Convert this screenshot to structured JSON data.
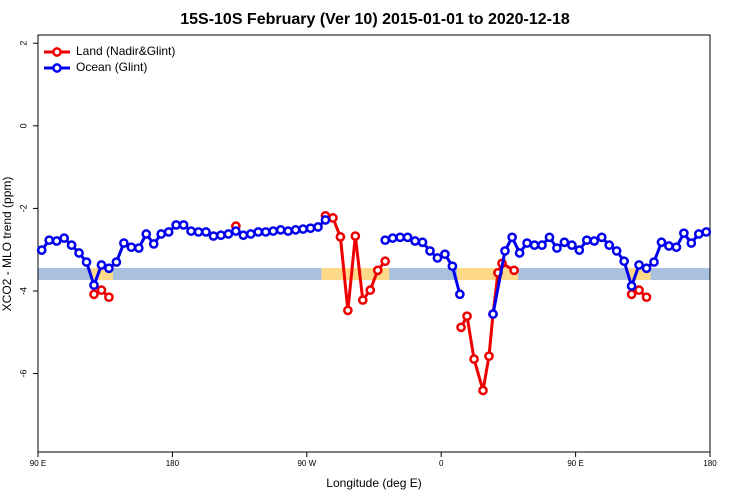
{
  "chart_data": {
    "type": "line",
    "title": "15S-10S February (Ver 10)   2015-01-01 to 2020-12-18",
    "x_label": "Longitude (deg E)",
    "y_label": "XCO2 - MLO trend (ppm)",
    "xlim": [
      90,
      540
    ],
    "xticks": [
      {
        "value": 90,
        "label": "90 E"
      },
      {
        "value": 180,
        "label": "180"
      },
      {
        "value": 270,
        "label": "90 W"
      },
      {
        "value": 360,
        "label": "0"
      },
      {
        "value": 450,
        "label": "90 E"
      },
      {
        "value": 540,
        "label": "180"
      }
    ],
    "ylim": [
      -7.9,
      2.2
    ],
    "yticks": [
      2,
      0,
      -2,
      -4,
      -6
    ],
    "legend": "top-left",
    "series": [
      {
        "name": "Land (Nadir&Glint)",
        "color": "#ee0000",
        "x": [
          127.5,
          132.5,
          137.5,
          142.5,
          222.5,
          227.5,
          282.5,
          287.5,
          292.5,
          297.5,
          302.5,
          307.5,
          312.5,
          317.5,
          322.5,
          327.5,
          373.3,
          377.3,
          382.0,
          388.0,
          392.0,
          394.7,
          398.0,
          400.7,
          408.8,
          412.5,
          487.5,
          492.5,
          497.5
        ],
        "values": [
          -4.08,
          -3.98,
          -4.15,
          null,
          -2.43,
          null,
          -2.18,
          -2.23,
          -2.69,
          -4.47,
          -2.67,
          -4.22,
          -3.98,
          -3.5,
          -3.28,
          null,
          -4.88,
          -4.61,
          -5.65,
          -6.41,
          -5.58,
          -4.56,
          -3.56,
          -3.33,
          -3.5,
          null,
          -4.08,
          -3.98,
          -4.15
        ]
      },
      {
        "name": "Ocean (Glint)",
        "color": "#0000ee",
        "x": [
          92.5,
          97.5,
          102.5,
          107.5,
          112.5,
          117.5,
          122.5,
          127.5,
          132.5,
          137.5,
          142.5,
          147.5,
          152.5,
          157.5,
          162.5,
          167.5,
          172.5,
          177.5,
          182.5,
          187.5,
          192.5,
          197.5,
          202.5,
          207.5,
          212.5,
          217.5,
          222.5,
          227.5,
          232.5,
          237.5,
          242.5,
          247.5,
          252.5,
          257.5,
          262.5,
          267.5,
          272.5,
          277.5,
          282.5,
          287.5,
          322.5,
          327.5,
          332.5,
          337.5,
          342.5,
          347.5,
          352.5,
          357.5,
          362.5,
          367.5,
          372.5,
          377.5,
          394.7,
          402.7,
          407.5,
          412.5,
          417.5,
          422.5,
          427.5,
          432.5,
          437.5,
          442.5,
          447.5,
          452.5,
          457.5,
          462.5,
          467.5,
          472.5,
          477.5,
          482.5,
          487.5,
          492.5,
          497.5,
          502.5,
          507.5,
          512.5,
          517.5,
          522.5,
          527.5,
          532.5,
          537.5
        ],
        "values": [
          -3.01,
          -2.77,
          -2.79,
          -2.72,
          -2.89,
          -3.08,
          -3.3,
          -3.86,
          -3.37,
          -3.45,
          -3.3,
          -2.84,
          -2.94,
          -2.96,
          -2.62,
          -2.86,
          -2.62,
          -2.57,
          -2.4,
          -2.4,
          -2.55,
          -2.57,
          -2.57,
          -2.67,
          -2.65,
          -2.62,
          -2.55,
          -2.65,
          -2.62,
          -2.57,
          -2.57,
          -2.55,
          -2.52,
          -2.55,
          -2.52,
          -2.5,
          -2.48,
          -2.45,
          -2.28,
          null,
          -2.77,
          -2.72,
          -2.7,
          -2.7,
          -2.79,
          -2.82,
          -3.03,
          -3.2,
          -3.11,
          -3.4,
          -4.08,
          null,
          -4.56,
          -3.03,
          -2.7,
          -3.08,
          -2.84,
          -2.89,
          -2.89,
          -2.7,
          -2.96,
          -2.82,
          -2.89,
          -3.01,
          -2.77,
          -2.79,
          -2.7,
          -2.89,
          -3.03,
          -3.28,
          -3.88,
          -3.37,
          -3.45,
          -3.3,
          -2.82,
          -2.91,
          -2.94,
          -2.6,
          -2.84,
          -2.62,
          -2.57
        ]
      }
    ]
  }
}
